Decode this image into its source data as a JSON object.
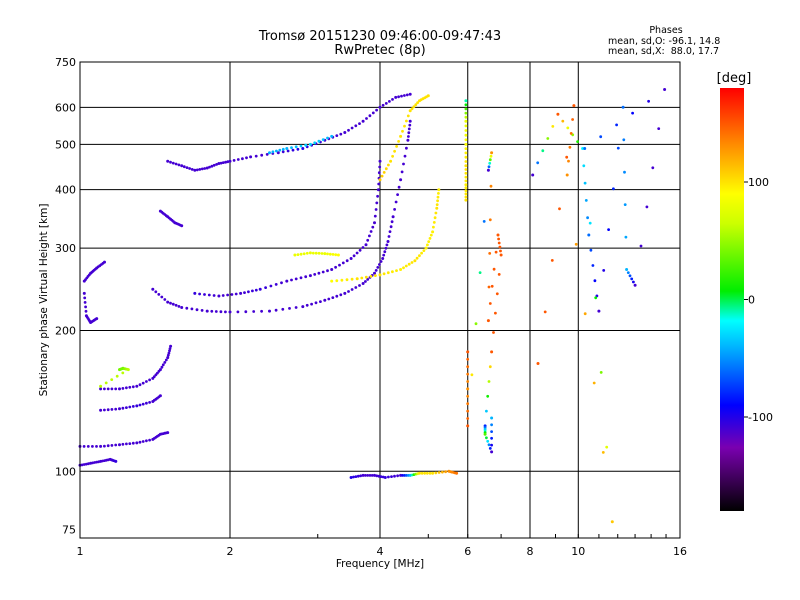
{
  "chart_data": {
    "type": "scatter",
    "title": "Tromsø 20151230 09:46:00-09:47:43",
    "subtitle": "RwPretec (8p)",
    "xlabel": "Frequency [MHz]",
    "ylabel": "Stationary phase Virtual Height [km]",
    "x_scale": "log",
    "y_scale": "log",
    "xlim": [
      1,
      16
    ],
    "ylim": [
      72,
      750
    ],
    "x_ticks": [
      "1",
      "2",
      "4",
      "6",
      "8",
      "10",
      "16"
    ],
    "y_ticks": [
      "75",
      "100",
      "200",
      "300",
      "400",
      "500",
      "600",
      "750"
    ],
    "grid": true,
    "phase_panel": {
      "title": "Phases",
      "line_o": "mean, sd,O: -96.1, 14.8",
      "line_x": "mean, sd,X:  88.0, 17.7"
    },
    "colorbar": {
      "label": "[deg]",
      "range": [
        -180,
        180
      ],
      "ticks": [
        "100",
        "0",
        "-100"
      ]
    },
    "series": [
      {
        "points": [
          [
            1.0,
            103,
            -110
          ],
          [
            1.05,
            104,
            -110
          ],
          [
            1.1,
            105,
            -110
          ],
          [
            1.15,
            106,
            -110
          ],
          [
            1.18,
            105,
            -105
          ]
        ]
      },
      {
        "points": [
          [
            1.0,
            113,
            -110
          ],
          [
            1.1,
            113,
            -110
          ],
          [
            1.2,
            114,
            -110
          ],
          [
            1.3,
            115,
            -110
          ],
          [
            1.4,
            117,
            -110
          ],
          [
            1.45,
            120,
            -110
          ],
          [
            1.5,
            121,
            -110
          ]
        ]
      },
      {
        "points": [
          [
            1.1,
            135,
            -110
          ],
          [
            1.2,
            136,
            -110
          ],
          [
            1.3,
            138,
            -105
          ],
          [
            1.4,
            141,
            -110
          ],
          [
            1.45,
            145,
            -110
          ]
        ]
      },
      {
        "points": [
          [
            1.1,
            150,
            -110
          ],
          [
            1.2,
            150,
            -110
          ],
          [
            1.3,
            152,
            -110
          ],
          [
            1.4,
            158,
            -110
          ],
          [
            1.45,
            165,
            -110
          ],
          [
            1.5,
            175,
            -110
          ],
          [
            1.52,
            185,
            -110
          ]
        ]
      },
      {
        "points": [
          [
            1.2,
            165,
            40
          ],
          [
            1.22,
            166,
            40
          ],
          [
            1.25,
            165,
            60
          ],
          [
            1.1,
            152,
            60
          ]
        ]
      },
      {
        "points": [
          [
            1.02,
            255,
            -110
          ],
          [
            1.05,
            265,
            -110
          ],
          [
            1.08,
            272,
            -110
          ],
          [
            1.12,
            280,
            -110
          ]
        ]
      },
      {
        "points": [
          [
            1.02,
            240,
            -110
          ],
          [
            1.03,
            215,
            -110
          ],
          [
            1.05,
            208,
            -110
          ],
          [
            1.08,
            212,
            -110
          ]
        ]
      },
      {
        "points": [
          [
            1.4,
            245,
            -110
          ],
          [
            1.5,
            230,
            -110
          ],
          [
            1.6,
            224,
            -110
          ],
          [
            1.8,
            220,
            -110
          ],
          [
            2.0,
            219,
            -110
          ],
          [
            2.4,
            220,
            -110
          ],
          [
            2.8,
            225,
            -110
          ],
          [
            3.1,
            232,
            -110
          ],
          [
            3.4,
            240,
            -110
          ],
          [
            3.7,
            252,
            -110
          ],
          [
            3.9,
            265,
            -110
          ],
          [
            4.05,
            285,
            -110
          ],
          [
            4.15,
            310,
            -110
          ],
          [
            4.25,
            350,
            -110
          ],
          [
            4.4,
            420,
            -110
          ],
          [
            4.55,
            510,
            -110
          ],
          [
            4.6,
            560,
            -110
          ]
        ]
      },
      {
        "points": [
          [
            1.7,
            240,
            -105
          ],
          [
            1.9,
            237,
            -110
          ],
          [
            2.1,
            240,
            -110
          ],
          [
            2.3,
            245,
            -105
          ],
          [
            2.6,
            255,
            -110
          ],
          [
            2.9,
            262,
            -110
          ],
          [
            3.2,
            270,
            -110
          ],
          [
            3.5,
            285,
            -110
          ],
          [
            3.75,
            305,
            -110
          ],
          [
            3.9,
            340,
            -110
          ],
          [
            3.97,
            400,
            -110
          ],
          [
            4.0,
            460,
            -110
          ]
        ]
      },
      {
        "points": [
          [
            3.2,
            255,
            90
          ],
          [
            3.6,
            258,
            100
          ],
          [
            4.0,
            263,
            100
          ],
          [
            4.4,
            270,
            95
          ],
          [
            4.7,
            282,
            100
          ],
          [
            4.95,
            300,
            95
          ],
          [
            5.1,
            325,
            95
          ],
          [
            5.2,
            365,
            100
          ],
          [
            5.25,
            400,
            95
          ]
        ]
      },
      {
        "points": [
          [
            2.7,
            290,
            80
          ],
          [
            2.9,
            293,
            80
          ],
          [
            3.1,
            292,
            80
          ],
          [
            3.3,
            290,
            90
          ]
        ]
      },
      {
        "points": [
          [
            4.0,
            420,
            110
          ],
          [
            4.2,
            460,
            100
          ],
          [
            4.4,
            520,
            100
          ],
          [
            4.6,
            590,
            100
          ],
          [
            4.8,
            620,
            100
          ],
          [
            5.0,
            635,
            100
          ]
        ]
      },
      {
        "points": [
          [
            1.5,
            460,
            -110
          ],
          [
            1.6,
            450,
            -110
          ],
          [
            1.7,
            440,
            -110
          ],
          [
            1.8,
            445,
            -110
          ],
          [
            1.9,
            455,
            -110
          ],
          [
            2.0,
            460,
            -110
          ],
          [
            2.2,
            470,
            -110
          ],
          [
            2.5,
            480,
            -110
          ],
          [
            2.8,
            490,
            -100
          ],
          [
            3.1,
            510,
            -110
          ],
          [
            3.4,
            530,
            -110
          ],
          [
            3.7,
            560,
            -110
          ],
          [
            4.0,
            600,
            -110
          ],
          [
            4.3,
            630,
            -110
          ],
          [
            4.6,
            640,
            -110
          ]
        ]
      },
      {
        "points": [
          [
            2.4,
            480,
            -40
          ],
          [
            2.6,
            490,
            -40
          ],
          [
            2.9,
            500,
            -30
          ],
          [
            3.2,
            520,
            -40
          ]
        ]
      },
      {
        "points": [
          [
            1.45,
            360,
            -110
          ],
          [
            1.5,
            350,
            -110
          ],
          [
            1.55,
            340,
            -110
          ],
          [
            1.6,
            335,
            -110
          ]
        ]
      },
      {
        "points": [
          [
            3.5,
            97,
            -100
          ],
          [
            3.7,
            98,
            -110
          ],
          [
            3.9,
            98,
            -110
          ],
          [
            4.1,
            97,
            -105
          ],
          [
            4.4,
            98,
            -110
          ],
          [
            4.6,
            98,
            -40
          ],
          [
            4.8,
            99,
            100
          ],
          [
            5.1,
            99,
            100
          ],
          [
            5.5,
            100,
            130
          ],
          [
            5.7,
            99,
            140
          ]
        ]
      },
      {
        "points": [
          [
            5.95,
            620,
            -10
          ],
          [
            5.95,
            560,
            80
          ],
          [
            5.95,
            500,
            90
          ],
          [
            5.95,
            450,
            100
          ],
          [
            5.95,
            410,
            95
          ],
          [
            5.95,
            380,
            100
          ]
        ]
      },
      {
        "points": [
          [
            6.0,
            180,
            150
          ],
          [
            6.0,
            150,
            130
          ],
          [
            6.0,
            125,
            150
          ],
          [
            6.6,
            440,
            -110
          ],
          [
            6.7,
            480,
            130
          ],
          [
            6.6,
            210,
            150
          ],
          [
            6.9,
            320,
            150
          ],
          [
            7.0,
            290,
            150
          ],
          [
            6.7,
            180,
            150
          ],
          [
            6.5,
            125,
            -80
          ],
          [
            6.5,
            120,
            30
          ],
          [
            6.7,
            110,
            -110
          ],
          [
            6.7,
            130,
            -40
          ]
        ]
      },
      {
        "points": [
          [
            8.1,
            430,
            -110
          ],
          [
            9.1,
            580,
            150
          ],
          [
            10.2,
            490,
            -20
          ],
          [
            10.5,
            320,
            -60
          ],
          [
            11.0,
            220,
            -110
          ],
          [
            12.3,
            600,
            -60
          ],
          [
            12.5,
            270,
            -40
          ],
          [
            13.0,
            250,
            -110
          ],
          [
            14.9,
            655,
            -110
          ],
          [
            10.3,
            490,
            -60
          ],
          [
            11.7,
            78,
            110
          ],
          [
            9.5,
            430,
            130
          ],
          [
            9.8,
            605,
            150
          ],
          [
            8.3,
            170,
            150
          ]
        ]
      }
    ]
  }
}
